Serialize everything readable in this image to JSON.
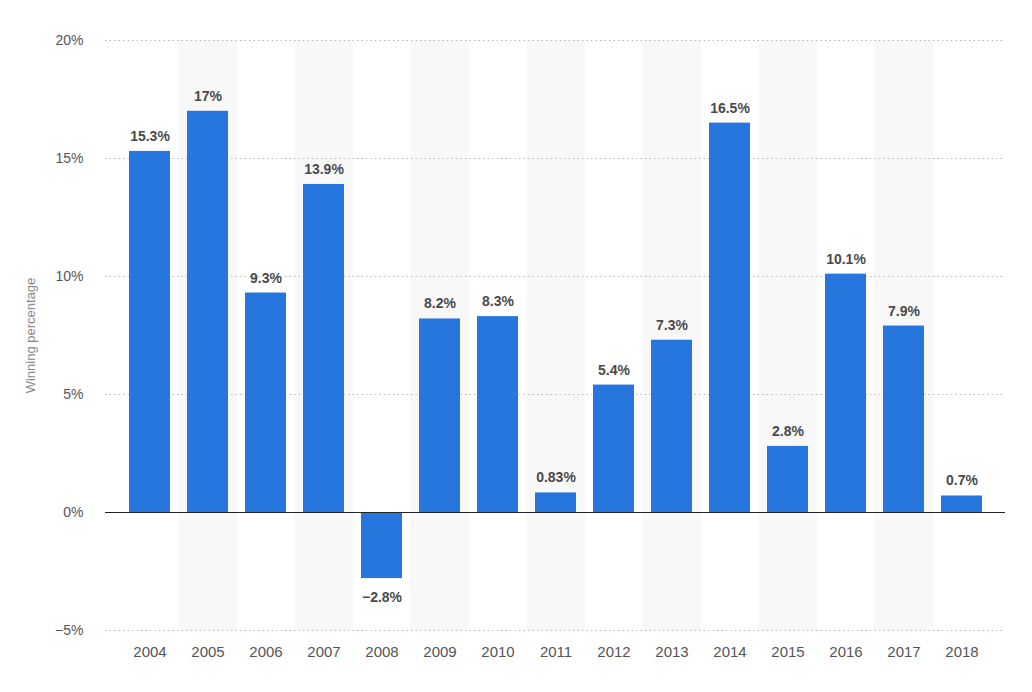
{
  "chart_data": {
    "type": "bar",
    "y_label": "Winning percentage",
    "categories": [
      "2004",
      "2005",
      "2006",
      "2007",
      "2008",
      "2009",
      "2010",
      "2011",
      "2012",
      "2013",
      "2014",
      "2015",
      "2016",
      "2017",
      "2018"
    ],
    "values": [
      15.3,
      17,
      9.3,
      13.9,
      -2.8,
      8.2,
      8.3,
      0.83,
      5.4,
      7.3,
      16.5,
      2.8,
      10.1,
      7.9,
      0.7
    ],
    "value_labels": [
      "15.3%",
      "17%",
      "9.3%",
      "13.9%",
      "−2.8%",
      "8.2%",
      "8.3%",
      "0.83%",
      "5.4%",
      "7.3%",
      "16.5%",
      "2.8%",
      "10.1%",
      "7.9%",
      "0.7%"
    ],
    "color": "#2776dd",
    "ylim": [
      -5,
      20
    ],
    "yticks": [
      {
        "value": -5,
        "label": "−5%"
      },
      {
        "value": 0,
        "label": "0%"
      },
      {
        "value": 5,
        "label": "5%"
      },
      {
        "value": 10,
        "label": "10%"
      },
      {
        "value": 15,
        "label": "15%"
      },
      {
        "value": 20,
        "label": "20%"
      }
    ],
    "grid": true,
    "data_labels": true
  }
}
